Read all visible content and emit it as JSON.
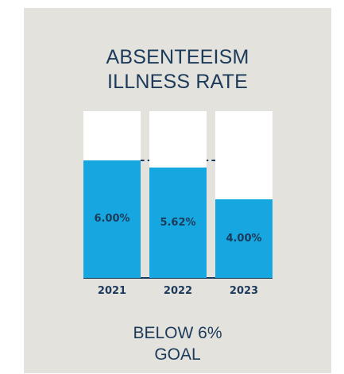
{
  "chart_data": {
    "type": "bar",
    "title_line1": "ABSENTEEISM",
    "title_line2": "ILLNESS RATE",
    "categories": [
      "2021",
      "2022",
      "2023"
    ],
    "values": [
      6.0,
      5.62,
      4.0
    ],
    "value_labels": [
      "6.00%",
      "5.62%",
      "4.00%"
    ],
    "goal": 6.0,
    "ylim": [
      0,
      8.5
    ],
    "note_line1": "BELOW 6%",
    "note_line2": "GOAL"
  },
  "colors": {
    "bar_fill": "#17a7e0",
    "bar_background": "#ffffff",
    "card_background": "#e4e2dd",
    "text": "#1c3a5a"
  }
}
